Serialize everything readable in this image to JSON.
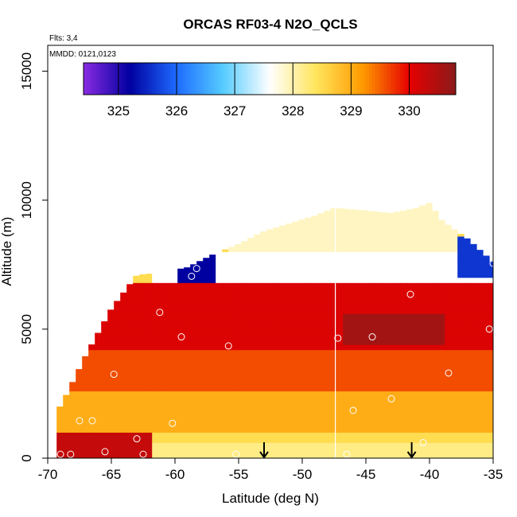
{
  "chart_data": {
    "type": "heatmap",
    "title": "ORCAS RF03-4 N2O_QCLS",
    "annotations": {
      "flights": "Flts: 3,4",
      "dates": "MMDD: 0121,0123"
    },
    "xlabel": "Latitude (deg N)",
    "ylabel": "Altitude (m)",
    "xlim": [
      -70,
      -35
    ],
    "ylim": [
      0,
      16000
    ],
    "xticks": [
      "-70",
      "-65",
      "-60",
      "-55",
      "-50",
      "-45",
      "-40",
      "-35"
    ],
    "yticks": [
      "0",
      "5000",
      "10000",
      "15000"
    ],
    "grid": false,
    "colorbar": {
      "range": [
        324.4,
        330.8
      ],
      "ticks": [
        "325",
        "326",
        "327",
        "328",
        "329",
        "330"
      ],
      "colors": [
        "#8a2be2",
        "#0000a0",
        "#1e6bff",
        "#55ccff",
        "#ffffff",
        "#ffe55c",
        "#ff9a00",
        "#e60000",
        "#8b1a1a"
      ],
      "placement": "top"
    },
    "vertical_line_lat": -47.4,
    "arrow_markers_lat": [
      -53,
      -41.4
    ],
    "upper_boundary": [
      [
        -69,
        2000
      ],
      [
        -67,
        4000
      ],
      [
        -65,
        5800
      ],
      [
        -63,
        7100
      ],
      [
        -61,
        7200
      ],
      [
        -59,
        7400
      ],
      [
        -57,
        7900
      ],
      [
        -55,
        8300
      ],
      [
        -53,
        8800
      ],
      [
        -51,
        9100
      ],
      [
        -49,
        9400
      ],
      [
        -47.5,
        9700
      ],
      [
        -45,
        9600
      ],
      [
        -43,
        9500
      ],
      [
        -41,
        9700
      ],
      [
        -40,
        9900
      ],
      [
        -39,
        9200
      ],
      [
        -37,
        8500
      ],
      [
        -35,
        7600
      ]
    ],
    "right_boundary_lower": [
      [
        -35,
        5000
      ],
      [
        -36,
        3000
      ],
      [
        -36.5,
        0
      ]
    ],
    "regions": [
      {
        "lat_min": -70,
        "lat_max": -35,
        "alt_min": 0,
        "alt_max": 600,
        "n2o": 328.2
      },
      {
        "lat_min": -70,
        "lat_max": -62,
        "alt_min": 0,
        "alt_max": 1000,
        "n2o": 330.3
      },
      {
        "lat_min": -70,
        "lat_max": -35,
        "alt_min": 1000,
        "alt_max": 2600,
        "n2o": 329.0
      },
      {
        "lat_min": -70,
        "lat_max": -35,
        "alt_min": 2600,
        "alt_max": 4200,
        "n2o": 329.6
      },
      {
        "lat_min": -70,
        "lat_max": -35,
        "alt_min": 4200,
        "alt_max": 6800,
        "n2o": 330.1
      },
      {
        "lat_min": -47,
        "lat_max": -39,
        "alt_min": 4400,
        "alt_max": 5600,
        "n2o": 330.6
      },
      {
        "lat_min": -62,
        "lat_max": -35,
        "alt_min": 6800,
        "alt_max": 8000,
        "n2o": 327.6
      },
      {
        "lat_min": -60,
        "lat_max": -57,
        "alt_min": 6900,
        "alt_max": 8000,
        "n2o": 325.2
      },
      {
        "lat_min": -38,
        "lat_max": -35,
        "alt_min": 7000,
        "alt_max": 8500,
        "n2o": 325.6
      },
      {
        "lat_min": -56,
        "lat_max": -38,
        "alt_min": 8000,
        "alt_max": 10000,
        "n2o": 327.9
      }
    ],
    "sample_points": [
      [
        -69,
        150
      ],
      [
        -68.2,
        150
      ],
      [
        -67.5,
        1450
      ],
      [
        -66.5,
        1450
      ],
      [
        -65.5,
        250
      ],
      [
        -64.8,
        3250
      ],
      [
        -63,
        750
      ],
      [
        -62.5,
        150
      ],
      [
        -61.2,
        5650
      ],
      [
        -60.2,
        1350
      ],
      [
        -59.5,
        4700
      ],
      [
        -58.7,
        7050
      ],
      [
        -58.3,
        7350
      ],
      [
        -56.5,
        7100
      ],
      [
        -55.8,
        4350
      ],
      [
        -55.2,
        150
      ],
      [
        -47.2,
        4650
      ],
      [
        -46.5,
        150
      ],
      [
        -46,
        1850
      ],
      [
        -45.5,
        7050
      ],
      [
        -44.5,
        4700
      ],
      [
        -43,
        2300
      ],
      [
        -41.5,
        6350
      ],
      [
        -40.5,
        600
      ],
      [
        -38.5,
        3300
      ],
      [
        -38.2,
        7800
      ],
      [
        -35.3,
        5000
      ],
      [
        -35,
        7550
      ]
    ]
  }
}
